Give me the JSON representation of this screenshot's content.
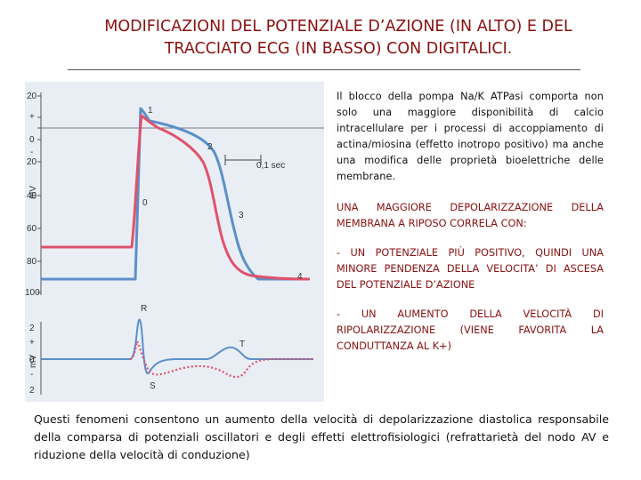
{
  "title": {
    "line1": "MODIFICAZIONI DEL POTENZIALE D’AZIONE (IN ALTO) E DEL",
    "line2": "TRACCIATO ECG (IN BASSO) CON DIGITALICI."
  },
  "figure": {
    "ap_axis_label": "mV",
    "ap_ticks": [
      "20",
      "+",
      "0",
      "-",
      "20",
      "40",
      "60",
      "80",
      "100"
    ],
    "ap_phase_labels": [
      "1",
      "2",
      "0",
      "3",
      "4"
    ],
    "time_scale_label": "0,1 sec",
    "ecg_axis_label": "mV",
    "ecg_ticks": [
      "2",
      "+",
      "0",
      "-",
      "2"
    ],
    "ecg_wave_labels": [
      "R",
      "T",
      "S"
    ],
    "colors": {
      "control_trace": "#5b8fc9",
      "digitalis_trace": "#e0526a",
      "axis": "#555555"
    }
  },
  "side": {
    "intro": "Il blocco della pompa Na/K ATPasi comporta non solo una maggiore disponibilità di calcio intracellulare per i processi di accoppiamento di actina/miosina (effetto inotropo positivo) ma anche una modifica delle proprietà bioelettriche delle membrane.",
    "heading": "UNA MAGGIORE DEPOLARIZZAZIONE DELLA MEMBRANA A RIPOSO CORRELA CON:",
    "point1": "- UN POTENZIALE PIÙ POSITIVO, QUINDI UNA MINORE PENDENZA DELLA VELOCITA’ DI ASCESA DEL POTENZIALE D’AZIONE",
    "point2": "- UN AUMENTO DELLA VELOCITÀ DI RIPOLARIZZAZIONE (VIENE FAVORITA LA CONDUTTANZA AL K+)"
  },
  "bottom": "Questi fenomeni consentono un aumento della velocità di depolarizzazione diastolica responsabile della comparsa di potenziali oscillatori e degli effetti elettrofisiologici (refrattarietà del nodo AV e riduzione della velocità di conduzione)"
}
